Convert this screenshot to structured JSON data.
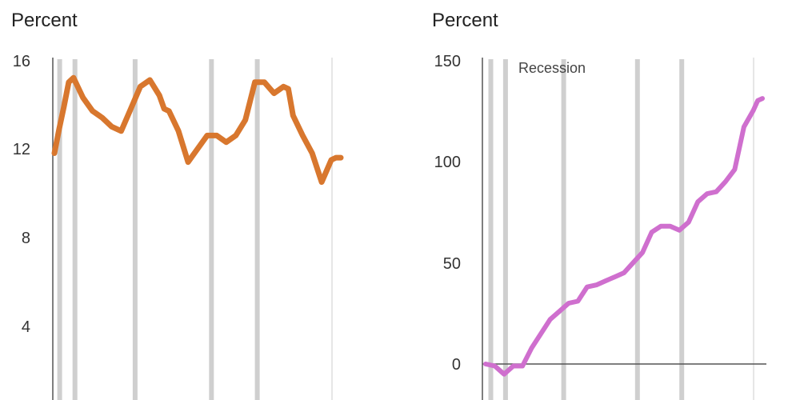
{
  "chart_data": [
    {
      "type": "line",
      "ylabel": "Percent",
      "ylim": [
        0,
        16
      ],
      "y_ticks": [
        "4",
        "8",
        "12",
        "16"
      ],
      "grid": false,
      "line_color": "#d8772e",
      "recession_color": "#cfcfcf",
      "recession_bands": [
        [
          0.3,
          0.6
        ],
        [
          1.9,
          2.3
        ],
        [
          8.2,
          8.4
        ],
        [
          16.2,
          16.5
        ],
        [
          21.0,
          21.5
        ]
      ],
      "x": [
        0,
        0.5,
        1,
        1.5,
        2,
        3,
        4,
        5,
        6,
        7,
        8,
        9,
        10,
        11,
        11.5,
        12,
        13,
        14,
        15,
        16,
        17,
        18,
        19,
        20,
        21,
        22,
        23,
        24,
        24.5,
        25,
        26,
        27,
        28,
        28.5,
        29,
        29.5,
        30
      ],
      "series": [
        {
          "values": [
            11.8,
            12.9,
            13.9,
            15.0,
            15.2,
            14.3,
            13.7,
            13.4,
            13.0,
            12.8,
            13.8,
            14.8,
            15.1,
            14.4,
            13.8,
            13.7,
            12.8,
            11.4,
            12.0,
            12.6,
            12.6,
            12.3,
            12.6,
            13.3,
            15.0,
            15.0,
            14.5,
            14.8,
            14.7,
            13.5,
            12.6,
            11.8,
            10.5,
            11.0,
            11.5,
            11.6,
            11.6
          ]
        }
      ]
    },
    {
      "type": "line",
      "ylabel": "Percent",
      "ylim": [
        -10,
        150
      ],
      "y_ticks": [
        "0",
        "50",
        "100",
        "150"
      ],
      "grid": false,
      "line_color": "#cf6fce",
      "recession_color": "#cfcfcf",
      "annotation": "Recession",
      "recession_bands": [
        [
          0.3,
          0.6
        ],
        [
          1.9,
          2.3
        ],
        [
          8.2,
          8.4
        ],
        [
          16.2,
          16.5
        ],
        [
          21.0,
          21.5
        ]
      ],
      "x": [
        0,
        1,
        2,
        3,
        4,
        5,
        6,
        7,
        8,
        9,
        10,
        11,
        12,
        13,
        14,
        15,
        16,
        17,
        18,
        19,
        20,
        21,
        22,
        23,
        24,
        25,
        26,
        27,
        28,
        29,
        29.5,
        30
      ],
      "series": [
        {
          "values": [
            0,
            -1,
            -5,
            -1,
            -1,
            8,
            15,
            22,
            26,
            30,
            31,
            38,
            39,
            41,
            43,
            45,
            50,
            55,
            65,
            68,
            68,
            66,
            70,
            80,
            84,
            85,
            90,
            96,
            117,
            125,
            130,
            131
          ]
        }
      ]
    }
  ]
}
